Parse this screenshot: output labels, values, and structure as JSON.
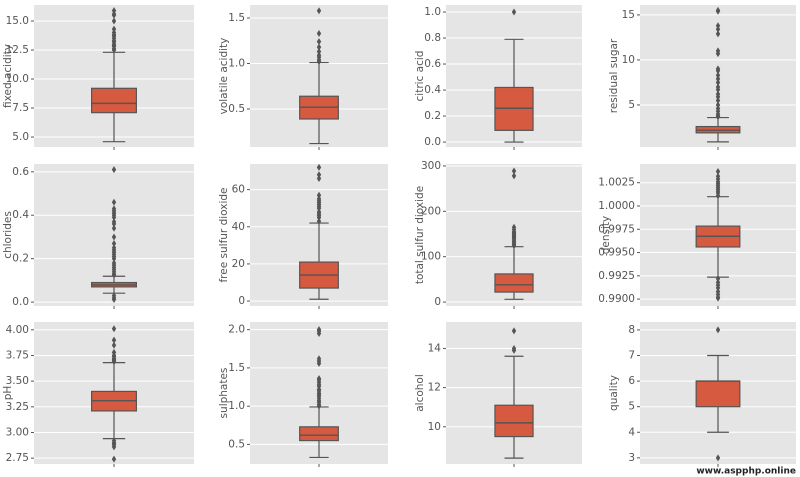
{
  "chart_data": [
    {
      "type": "box",
      "ylabel": "fixed acidity",
      "ylim": [
        4.14,
        16.38
      ],
      "yticks": [
        {
          "value": 5,
          "label": "5.0"
        },
        {
          "value": 7.5,
          "label": "7.5"
        },
        {
          "value": 10,
          "label": "10.0"
        },
        {
          "value": 12.5,
          "label": "12.5"
        },
        {
          "value": 15,
          "label": "15.0"
        }
      ],
      "stats": {
        "whislo": 4.6,
        "q1": 7.1,
        "med": 7.9,
        "q3": 9.2,
        "whishi": 12.3
      },
      "fliers": [
        12.5,
        12.6,
        12.8,
        12.9,
        13.0,
        13.2,
        13.3,
        13.5,
        13.7,
        13.8,
        14.0,
        14.3,
        15.0,
        15.5,
        15.6,
        15.9
      ]
    },
    {
      "type": "box",
      "ylabel": "volatile acidity",
      "ylim": [
        0.082,
        1.643
      ],
      "yticks": [
        0.5,
        {
          "value": 1,
          "label": "1.0"
        },
        1.5
      ],
      "stats": {
        "whislo": 0.12,
        "q1": 0.39,
        "med": 0.52,
        "q3": 0.64,
        "whishi": 1.01
      },
      "fliers": [
        1.02,
        1.04,
        1.07,
        1.09,
        1.13,
        1.18,
        1.24,
        1.33,
        1.58
      ]
    },
    {
      "type": "box",
      "ylabel": "citric acid",
      "ylim": [
        -0.038,
        1.054
      ],
      "yticks": [
        {
          "value": 0,
          "label": "0.0"
        },
        0.2,
        0.4,
        0.6,
        0.8,
        {
          "value": 1,
          "label": "1.0"
        }
      ],
      "stats": {
        "whislo": 0,
        "q1": 0.09,
        "med": 0.26,
        "q3": 0.42,
        "whishi": 0.79
      },
      "fliers": [
        1.0
      ]
    },
    {
      "type": "box",
      "ylabel": "residual sugar",
      "ylim": [
        0.33,
        16.1
      ],
      "yticks": [
        5,
        10,
        15
      ],
      "stats": {
        "whislo": 0.9,
        "q1": 1.9,
        "med": 2.2,
        "q3": 2.6,
        "whishi": 3.6
      },
      "fliers": [
        3.7,
        3.8,
        4.0,
        4.3,
        4.6,
        5.0,
        5.5,
        5.9,
        6.2,
        6.7,
        7.0,
        7.5,
        7.9,
        8.3,
        8.8,
        9.0,
        10.7,
        11.0,
        12.9,
        13.4,
        13.8,
        15.4,
        15.5
      ]
    },
    {
      "type": "box",
      "ylabel": "chlorides",
      "ylim": [
        -0.018,
        0.636
      ],
      "yticks": [
        {
          "value": 0,
          "label": "0.0"
        },
        0.2,
        0.4,
        0.6
      ],
      "stats": {
        "whislo": 0.041,
        "q1": 0.07,
        "med": 0.079,
        "q3": 0.09,
        "whishi": 0.119
      },
      "fliers": [
        0.012,
        0.02,
        0.03,
        0.125,
        0.13,
        0.14,
        0.15,
        0.16,
        0.17,
        0.18,
        0.2,
        0.21,
        0.22,
        0.23,
        0.24,
        0.25,
        0.27,
        0.3,
        0.34,
        0.36,
        0.37,
        0.39,
        0.4,
        0.41,
        0.42,
        0.43,
        0.46,
        0.61
      ]
    },
    {
      "type": "box",
      "ylabel": "free sulfur dioxide",
      "ylim": [
        -2.65,
        73.8
      ],
      "yticks": [
        0,
        20,
        40,
        60
      ],
      "stats": {
        "whislo": 1,
        "q1": 7,
        "med": 14,
        "q3": 21,
        "whishi": 42
      },
      "fliers": [
        43,
        45,
        46,
        47,
        48,
        50,
        51,
        52,
        53,
        54,
        55,
        57,
        66,
        68,
        72
      ]
    },
    {
      "type": "box",
      "ylabel": "total sulfur dioxide",
      "ylim": [
        -8.7,
        304.3
      ],
      "yticks": [
        0,
        100,
        200,
        300
      ],
      "stats": {
        "whislo": 6,
        "q1": 22,
        "med": 38,
        "q3": 62,
        "whishi": 122
      },
      "fliers": [
        124,
        127,
        130,
        133,
        135,
        139,
        141,
        143,
        145,
        147,
        148,
        151,
        153,
        155,
        160,
        165,
        278,
        289
      ]
    },
    {
      "type": "box",
      "ylabel": "density",
      "ylim": [
        0.98926,
        1.00451
      ],
      "yticks": [
        {
          "value": 0.99,
          "label": "0.9900"
        },
        {
          "value": 0.9925,
          "label": "0.9925"
        },
        {
          "value": 0.995,
          "label": "0.9950"
        },
        {
          "value": 0.9975,
          "label": "0.9975"
        },
        {
          "value": 1,
          "label": "1.0000"
        },
        {
          "value": 1.0025,
          "label": "1.0025"
        }
      ],
      "stats": {
        "whislo": 0.99236,
        "q1": 0.9956,
        "med": 0.99675,
        "q3": 0.99784,
        "whishi": 1.001
      },
      "fliers": [
        0.9901,
        0.9902,
        0.9905,
        0.9908,
        0.9912,
        0.9915,
        0.9918,
        0.9922,
        1.0011,
        1.0014,
        1.0016,
        1.0018,
        1.002,
        1.0022,
        1.0024,
        1.0026,
        1.0029,
        1.0032,
        1.0037
      ]
    },
    {
      "type": "box",
      "ylabel": "pH",
      "ylim": [
        2.693,
        4.076
      ],
      "yticks": [
        2.75,
        {
          "value": 3,
          "label": "3.00"
        },
        3.25,
        {
          "value": 3.5,
          "label": "3.50"
        },
        3.75,
        {
          "value": 4,
          "label": "4.00"
        }
      ],
      "stats": {
        "whislo": 2.94,
        "q1": 3.21,
        "med": 3.31,
        "q3": 3.4,
        "whishi": 3.68
      },
      "fliers": [
        2.74,
        2.86,
        2.88,
        2.89,
        2.9,
        2.92,
        3.69,
        3.7,
        3.71,
        3.72,
        3.74,
        3.75,
        3.78,
        3.85,
        3.9,
        4.01
      ]
    },
    {
      "type": "box",
      "ylabel": "sulphates",
      "ylim": [
        0.244,
        2.1
      ],
      "yticks": [
        0.5,
        {
          "value": 1,
          "label": "1.0"
        },
        1.5,
        {
          "value": 2,
          "label": "2.0"
        }
      ],
      "stats": {
        "whislo": 0.33,
        "q1": 0.55,
        "med": 0.62,
        "q3": 0.73,
        "whishi": 0.99
      },
      "fliers": [
        1.0,
        1.02,
        1.05,
        1.07,
        1.1,
        1.13,
        1.15,
        1.17,
        1.2,
        1.22,
        1.26,
        1.28,
        1.31,
        1.34,
        1.36,
        1.56,
        1.59,
        1.62,
        1.95,
        1.98,
        2.0
      ]
    },
    {
      "type": "box",
      "ylabel": "alcohol",
      "ylim": [
        8.1,
        15.35
      ],
      "yticks": [
        10,
        12,
        14
      ],
      "stats": {
        "whislo": 8.4,
        "q1": 9.5,
        "med": 10.2,
        "q3": 11.1,
        "whishi": 13.6
      },
      "fliers": [
        13.9,
        14.0,
        14.9
      ]
    },
    {
      "type": "box",
      "ylabel": "quality",
      "ylim": [
        2.76,
        8.31
      ],
      "yticks": [
        3,
        4,
        5,
        6,
        7,
        8
      ],
      "stats": {
        "whislo": 4,
        "q1": 5,
        "med": 6,
        "q3": 6,
        "whishi": 7
      },
      "fliers": [
        3,
        8
      ]
    }
  ],
  "watermark": "www.aspphp.online"
}
